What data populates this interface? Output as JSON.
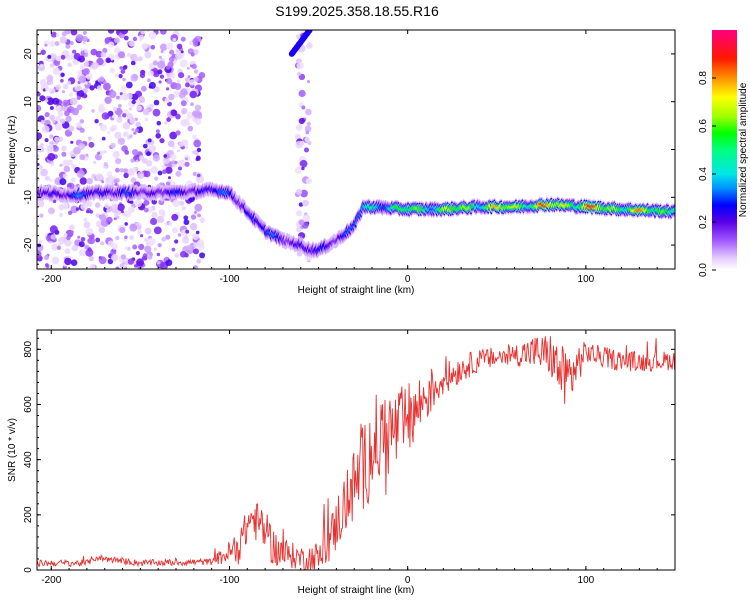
{
  "title": "S199.2025.358.18.55.R16",
  "chart_data": [
    {
      "type": "heatmap",
      "name": "spectrogram",
      "xlabel": "Height of straight line (km)",
      "ylabel": "Frequency (Hz)",
      "xlim": [
        -208,
        150
      ],
      "ylim": [
        -25,
        25
      ],
      "xticks": [
        -200,
        -100,
        0,
        100
      ],
      "yticks": [
        -20,
        -10,
        0,
        10,
        20
      ],
      "colorbar": {
        "label": "Normalized spectral amplitude",
        "range": [
          0,
          1
        ],
        "ticks": [
          0.0,
          0.2,
          0.4,
          0.6,
          0.8
        ],
        "tick_labels": [
          "0.0",
          "0.2",
          "0.4",
          "0.6",
          "0.8"
        ]
      },
      "ridge": {
        "x": [
          -208,
          -190,
          -170,
          -150,
          -130,
          -110,
          -100,
          -90,
          -80,
          -70,
          -60,
          -55,
          -50,
          -40,
          -30,
          -25,
          -20,
          0,
          20,
          40,
          60,
          80,
          100,
          120,
          150
        ],
        "freq": [
          -9,
          -9.5,
          -9,
          -9,
          -9,
          -8.5,
          -9,
          -13,
          -17,
          -19,
          -20,
          -21,
          -21,
          -19,
          -16,
          -12,
          -12,
          -12.5,
          -12.5,
          -12,
          -12,
          -11.5,
          -12,
          -12.5,
          -13
        ],
        "amplitude": [
          0.25,
          0.3,
          0.3,
          0.25,
          0.25,
          0.3,
          0.3,
          0.3,
          0.3,
          0.3,
          0.25,
          0.25,
          0.25,
          0.3,
          0.35,
          0.4,
          0.5,
          0.6,
          0.65,
          0.7,
          0.75,
          0.8,
          0.8,
          0.75,
          0.7
        ]
      },
      "noise_regions": [
        {
          "x": [
            -208,
            -115
          ],
          "freq": [
            -25,
            25
          ],
          "level": "scattered low amplitude"
        },
        {
          "x": [
            -62,
            -55
          ],
          "freq": [
            -25,
            25
          ],
          "level": "sparse low amplitude"
        }
      ],
      "extra_features": [
        {
          "x": [
            -65,
            -55
          ],
          "freq": [
            20,
            25
          ],
          "amplitude": 0.25
        }
      ]
    },
    {
      "type": "line",
      "name": "snr",
      "xlabel": "Height of straight line (km)",
      "ylabel": "SNR (10 * v/v)",
      "xlim": [
        -208,
        150
      ],
      "ylim": [
        0,
        870
      ],
      "xticks": [
        -200,
        -100,
        0,
        100
      ],
      "yticks": [
        0,
        200,
        400,
        600,
        800
      ],
      "color": "#e8312f",
      "anchors": {
        "x": [
          -208,
          -180,
          -175,
          -150,
          -110,
          -95,
          -88,
          -82,
          -75,
          -70,
          -60,
          -50,
          -42,
          -38,
          -32,
          -28,
          -24,
          -20,
          -15,
          -10,
          -5,
          0,
          5,
          10,
          20,
          30,
          40,
          50,
          60,
          70,
          80,
          85,
          90,
          95,
          100,
          110,
          120,
          130,
          150
        ],
        "y": [
          25,
          25,
          45,
          25,
          30,
          80,
          190,
          160,
          80,
          60,
          45,
          40,
          130,
          200,
          280,
          330,
          380,
          450,
          480,
          500,
          510,
          540,
          580,
          630,
          690,
          730,
          760,
          770,
          780,
          790,
          780,
          720,
          690,
          740,
          790,
          770,
          760,
          755,
          760
        ]
      },
      "noise_amplitude": {
        "x": [
          -208,
          -110,
          -95,
          -80,
          -60,
          -45,
          -30,
          -20,
          0,
          20,
          40,
          60,
          80,
          90,
          100,
          150
        ],
        "amp": [
          12,
          12,
          60,
          80,
          40,
          80,
          140,
          180,
          140,
          60,
          40,
          40,
          80,
          120,
          40,
          35
        ]
      }
    }
  ]
}
